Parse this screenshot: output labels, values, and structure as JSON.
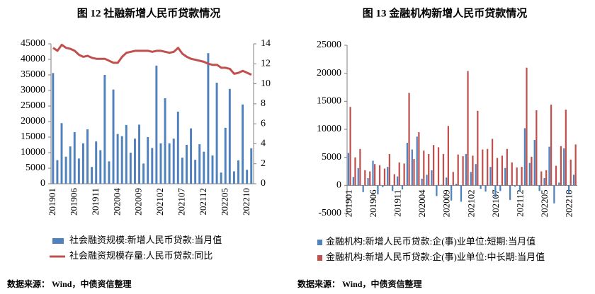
{
  "chart_data": [
    {
      "type": "bar",
      "title": "图 12  社融新增人民币贷款情况",
      "source": "数据来源： Wind，中债资信整理",
      "categories": [
        "201901",
        null,
        null,
        null,
        null,
        "201906",
        null,
        null,
        null,
        null,
        "201911",
        null,
        null,
        null,
        null,
        "202004",
        null,
        null,
        null,
        null,
        "202009",
        null,
        null,
        null,
        null,
        "202102",
        null,
        null,
        null,
        null,
        "202107",
        null,
        null,
        null,
        null,
        "202112",
        null,
        null,
        null,
        null,
        "202205",
        null,
        null,
        null,
        null,
        "202210",
        null
      ],
      "ylim": [
        0,
        45000
      ],
      "yticks": [
        0,
        5000,
        10000,
        15000,
        20000,
        25000,
        30000,
        35000,
        40000,
        45000
      ],
      "y2lim": [
        0,
        14
      ],
      "y2ticks": [
        0,
        2,
        4,
        6,
        8,
        10,
        12,
        14
      ],
      "series": [
        {
          "name": "社会融资规模:新增人民币贷款:当月值",
          "color": "#4f81bd",
          "type": "bar",
          "values": [
            35600,
            7600,
            19500,
            8700,
            12000,
            16600,
            8100,
            13000,
            17500,
            5400,
            13600,
            10800,
            35000,
            7200,
            30300,
            16000,
            15300,
            18900,
            10000,
            14500,
            19000,
            6500,
            15000,
            11500,
            38000,
            13000,
            27500,
            13000,
            14500,
            23200,
            8400,
            12500,
            17800,
            7700,
            12700,
            10300,
            42000,
            9100,
            32500,
            3600,
            18000,
            30500,
            4000,
            7500,
            25500,
            4500,
            11400
          ]
        },
        {
          "name": "社会融资规模存量:人民币贷款:同比",
          "color": "#c0504d",
          "type": "line",
          "axis": "y2",
          "values": [
            13.6,
            13.3,
            13.9,
            13.6,
            13.5,
            13.3,
            12.9,
            12.7,
            12.8,
            12.6,
            12.5,
            12.5,
            12.5,
            12.3,
            12.1,
            12.1,
            12.7,
            13.1,
            13.2,
            13.3,
            13.3,
            13.3,
            13.3,
            13.2,
            13.3,
            13.3,
            13.2,
            13.1,
            13.2,
            13.6,
            13.0,
            12.7,
            12.5,
            12.4,
            12.3,
            12.2,
            12.0,
            11.9,
            11.9,
            11.6,
            11.6,
            11.5,
            11.0,
            11.1,
            11.3,
            11.1,
            10.9
          ]
        }
      ]
    },
    {
      "type": "bar",
      "title": "图 13  金融机构新增人民币贷款情况",
      "source": "数据来源： Wind，中债资信整理",
      "categories": [
        "201901",
        null,
        null,
        null,
        null,
        "201906",
        null,
        null,
        null,
        null,
        "201911",
        null,
        null,
        null,
        null,
        "202004",
        null,
        null,
        null,
        null,
        "202009",
        null,
        null,
        null,
        null,
        "202102",
        null,
        null,
        null,
        null,
        "202107",
        null,
        null,
        null,
        null,
        "202112",
        null,
        null,
        null,
        null,
        "202205",
        null,
        null,
        null,
        null,
        "202210",
        null
      ],
      "ylim": [
        -5000,
        25000
      ],
      "yticks": [
        -5000,
        0,
        5000,
        10000,
        15000,
        20000,
        25000
      ],
      "series": [
        {
          "name": "金融机构:新增人民币贷款:企(事)业单位:短期:当月值",
          "color": "#4f81bd",
          "type": "bar",
          "values": [
            5800,
            1500,
            3100,
            -1200,
            1300,
            4400,
            -1600,
            -300,
            3300,
            -1000,
            1600,
            -700,
            7600,
            6400,
            8700,
            1200,
            1900,
            2700,
            -1900,
            100,
            1400,
            -2700,
            300,
            -2900,
            5600,
            2400,
            3800,
            -600,
            -1100,
            3300,
            -2100,
            -1000,
            3100,
            -2600,
            -200,
            -1000,
            10200,
            4000,
            8100,
            -1000,
            1300,
            6900,
            -3200,
            500,
            6600,
            -1400,
            1900
          ]
        },
        {
          "name": "金融机构:新增人民币贷款:企(事)业单位:中长期:当月值",
          "color": "#c0504d",
          "type": "bar",
          "values": [
            14000,
            5000,
            6500,
            2700,
            2500,
            3800,
            3600,
            3000,
            5600,
            2000,
            4100,
            3900,
            16500,
            4700,
            9500,
            6200,
            5600,
            7200,
            6800,
            5600,
            10600,
            2400,
            5500,
            5200,
            20400,
            5300,
            13300,
            6400,
            6500,
            8300,
            4900,
            5300,
            6500,
            4100,
            3200,
            3300,
            21000,
            5100,
            13400,
            2500,
            2700,
            14400,
            3500,
            7000,
            13500,
            4600,
            7300
          ]
        }
      ]
    }
  ]
}
